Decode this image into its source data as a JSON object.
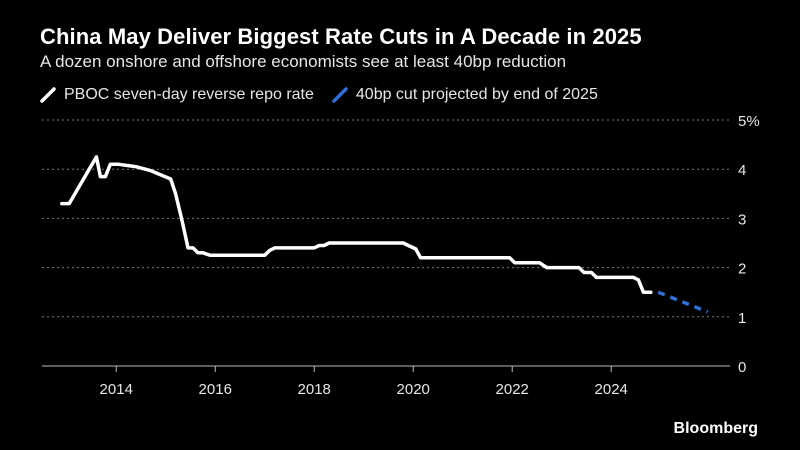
{
  "title": "China May Deliver Biggest Rate Cuts in A Decade in 2025",
  "subtitle": "A dozen onshore and offshore economists see at least 40bp reduction",
  "legend": [
    {
      "label": "PBOC seven-day reverse repo rate",
      "color": "#ffffff",
      "style": "solid"
    },
    {
      "label": "40bp cut projected by end of 2025",
      "color": "#2f6fd8",
      "style": "dashed"
    }
  ],
  "brand": "Bloomberg",
  "chart_data": {
    "type": "line",
    "title": "China May Deliver Biggest Rate Cuts in A Decade in 2025",
    "xlabel": "",
    "ylabel": "",
    "xlim": [
      2012.5,
      2026.4
    ],
    "ylim": [
      0,
      5
    ],
    "grid": true,
    "x_ticks": [
      2014,
      2016,
      2018,
      2020,
      2022,
      2024
    ],
    "x_tick_labels": [
      "2014",
      "2016",
      "2018",
      "2020",
      "2022",
      "2024"
    ],
    "y_ticks": [
      0,
      1,
      2,
      3,
      4,
      5
    ],
    "y_tick_labels": [
      "0",
      "1",
      "2",
      "3",
      "4",
      "5%"
    ],
    "series": [
      {
        "name": "PBOC seven-day reverse repo rate",
        "color": "#ffffff",
        "style": "solid",
        "x": [
          2012.9,
          2013.05,
          2013.6,
          2013.68,
          2013.78,
          2013.88,
          2014.05,
          2014.4,
          2014.7,
          2015.1,
          2015.2,
          2015.33,
          2015.45,
          2015.55,
          2015.65,
          2015.75,
          2015.9,
          2016.0,
          2017.0,
          2017.1,
          2017.2,
          2018.0,
          2018.1,
          2018.2,
          2018.3,
          2019.8,
          2019.9,
          2020.05,
          2020.15,
          2020.25,
          2021.95,
          2022.05,
          2022.55,
          2022.7,
          2023.35,
          2023.45,
          2023.6,
          2023.7,
          2024.45,
          2024.55,
          2024.65,
          2024.8
        ],
        "y": [
          3.3,
          3.3,
          4.25,
          3.85,
          3.85,
          4.1,
          4.1,
          4.05,
          3.97,
          3.8,
          3.5,
          2.95,
          2.4,
          2.4,
          2.3,
          2.3,
          2.25,
          2.25,
          2.25,
          2.35,
          2.4,
          2.4,
          2.45,
          2.45,
          2.5,
          2.5,
          2.45,
          2.38,
          2.2,
          2.2,
          2.2,
          2.1,
          2.1,
          2.0,
          2.0,
          1.9,
          1.9,
          1.8,
          1.8,
          1.75,
          1.5,
          1.5
        ]
      },
      {
        "name": "40bp cut projected by end of 2025",
        "color": "#2f6fd8",
        "style": "dashed",
        "x": [
          2024.95,
          2025.95
        ],
        "y": [
          1.5,
          1.1
        ]
      }
    ]
  }
}
